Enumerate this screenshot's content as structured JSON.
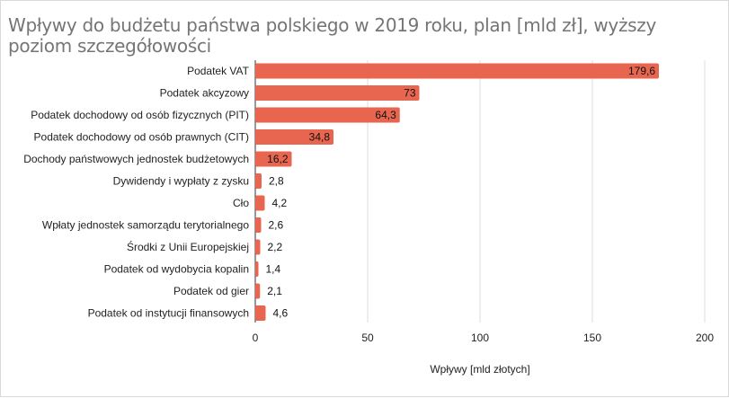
{
  "chart_data": {
    "type": "bar",
    "orientation": "horizontal",
    "title": "Wpływy do budżetu państwa polskiego w 2019 roku, plan [mld zł], wyższy poziom szczegółowości",
    "xlabel": "Wpływy [mld złotych]",
    "ylabel": "",
    "categories": [
      "Podatek VAT",
      "Podatek akcyzowy",
      "Podatek dochodowy od osób fizycznych (PIT)",
      "Podatek dochodowy od osób prawnych (CIT)",
      "Dochody państwowych jednostek budżetowych",
      "Dywidendy i wypłaty z zysku",
      "Cło",
      "Wpłaty jednostek samorządu terytorialnego",
      "Środki z Unii Europejskiej",
      "Podatek od wydobycia kopalin",
      "Podatek od gier",
      "Podatek od instytucji finansowych"
    ],
    "values": [
      179.6,
      73,
      64.3,
      34.8,
      16.2,
      2.8,
      4.2,
      2.6,
      2.2,
      1.4,
      2.1,
      4.6
    ],
    "value_labels": [
      "179,6",
      "73",
      "64,3",
      "34,8",
      "16,2",
      "2,8",
      "4,2",
      "2,6",
      "2,2",
      "1,4",
      "2,1",
      "4,6"
    ],
    "xlim": [
      0,
      200
    ],
    "xticks": [
      0,
      50,
      100,
      150,
      200
    ],
    "xtick_labels": [
      "0",
      "50",
      "100",
      "150",
      "200"
    ],
    "grid": true,
    "legend": "none",
    "bar_color": "#e8654f"
  }
}
